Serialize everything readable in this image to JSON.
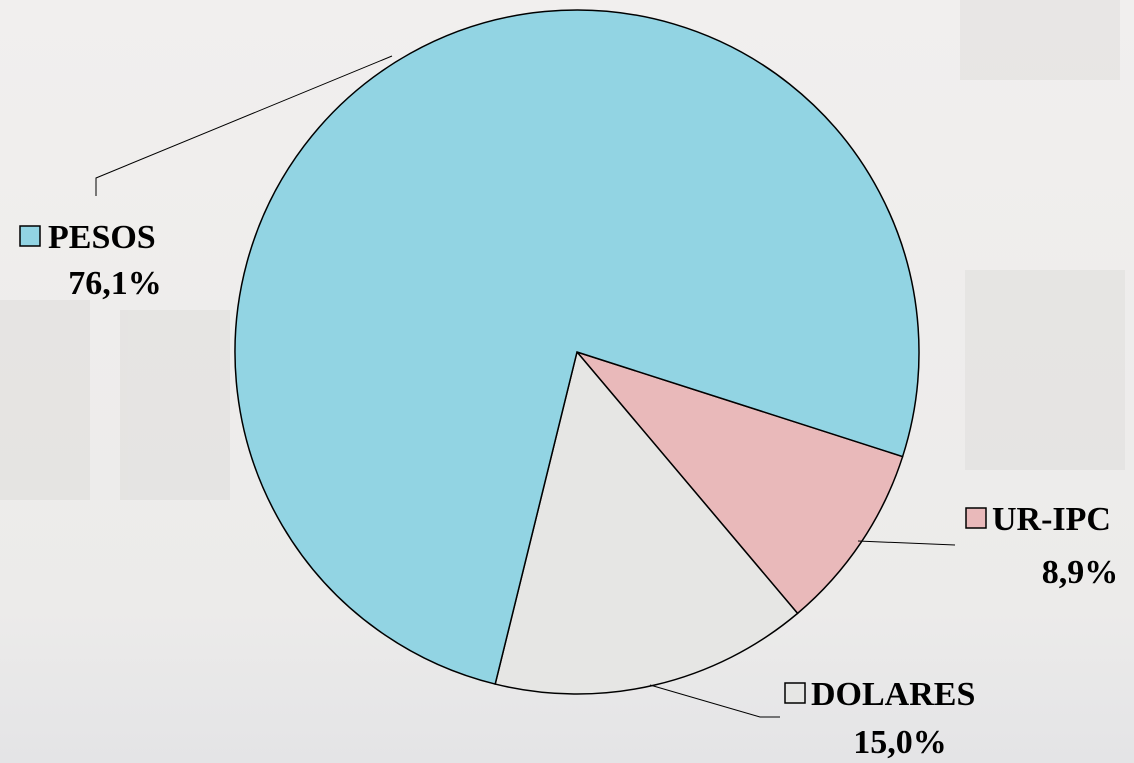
{
  "chart_data": {
    "type": "pie",
    "categories": [
      "UR-IPC",
      "DOLARES",
      "PESOS"
    ],
    "values": [
      8.9,
      15.0,
      76.1
    ],
    "value_labels": [
      "8,9%",
      "15,0%",
      "76,1%"
    ],
    "colors": [
      "#e9b9ba",
      "#e6e6e4",
      "#92d4e3"
    ]
  }
}
